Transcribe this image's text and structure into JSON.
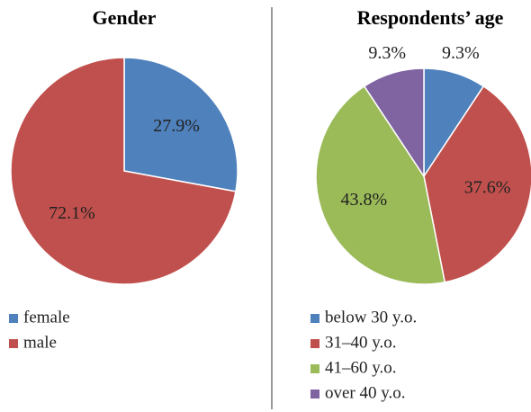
{
  "chart_data": [
    {
      "type": "pie",
      "title": "Gender",
      "categories": [
        "female",
        "male"
      ],
      "values": [
        27.9,
        72.1
      ],
      "value_labels": [
        "27.9%",
        "72.1%"
      ],
      "colors": [
        "#4f81bd",
        "#c0504d"
      ]
    },
    {
      "type": "pie",
      "title": "Respondents’ age",
      "categories": [
        "below 30 y.o.",
        "31–40 y.o.",
        "41–60 y.o.",
        "over 40 y.o."
      ],
      "values": [
        9.3,
        37.6,
        43.8,
        9.3
      ],
      "value_labels": [
        "9.3%",
        "37.6%",
        "43.8%",
        "9.3%"
      ],
      "colors": [
        "#4f81bd",
        "#c0504d",
        "#9bbb59",
        "#8064a2"
      ]
    }
  ]
}
